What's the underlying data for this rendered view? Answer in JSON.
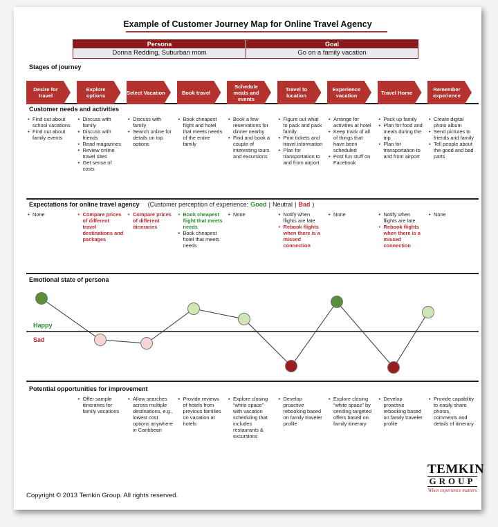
{
  "title": "Example of Customer Journey Map for Online Travel Agency",
  "persona": {
    "label": "Persona",
    "value": "Donna Redding, Suburban mom"
  },
  "goal": {
    "label": "Goal",
    "value": "Go on a family vacation"
  },
  "stages": {
    "title": "Stages of journey",
    "items": [
      "Desire for travel",
      "Explore options",
      "Select Vacation",
      "Book travel",
      "Schedule meals and events",
      "Travel to location",
      "Experience vacation",
      "Travel Home",
      "Remember experience"
    ]
  },
  "needs": {
    "title": "Customer needs and activities",
    "columns": [
      [
        "Find out about school vacations",
        "Find out about family events"
      ],
      [
        "Discuss with family",
        "Discuss with friends",
        "Read magazines",
        "Review online travel sites",
        "Get sense of costs"
      ],
      [
        "Discuss with family",
        "Search online for details on top options"
      ],
      [
        "Book cheapest flight and hotel that meets needs of the entire family"
      ],
      [
        "Book a few reservations for dinner nearby",
        "Find and book a couple of interesting tours and excursions"
      ],
      [
        "Figure out what to pack and pack family",
        "Print tickets and travel information",
        "Plan for transportation to and from airport"
      ],
      [
        "Arrange for activities at hotel",
        "Keep track of all of things that have been scheduled",
        "Post fun stuff on Facebook"
      ],
      [
        "Pack up family",
        "Plan for food and meals during the trip",
        "Plan for transportation to and from airport"
      ],
      [
        "Create digital photo album",
        "Send pictures to friends and family",
        "Tell people about the good and bad parts"
      ]
    ]
  },
  "expectations": {
    "title": "Expectations for online travel agency",
    "legend": [
      {
        "text": "(Customer perception of experience:",
        "color": "#222222"
      },
      {
        "text": "Good",
        "color": "#2e8b2e"
      },
      {
        "text": "|",
        "color": "#222222"
      },
      {
        "text": "Neutral",
        "color": "#222222"
      },
      {
        "text": "|",
        "color": "#222222"
      },
      {
        "text": "Bad",
        "color": "#c0282d"
      },
      {
        "text": ")",
        "color": "#222222"
      }
    ],
    "columns": [
      [
        {
          "text": "None",
          "color": "#222222"
        }
      ],
      [
        {
          "text": "Compare prices of different travel destinations and packages",
          "color": "#c0282d"
        }
      ],
      [
        {
          "text": "Compare prices of different itineraries",
          "color": "#c0282d"
        }
      ],
      [
        {
          "text": "Book cheapest flight that meets needs",
          "color": "#2e8b2e"
        },
        {
          "text": "Book cheapest hotel that meets needs",
          "color": "#222222"
        }
      ],
      [
        {
          "text": "None",
          "color": "#222222"
        }
      ],
      [
        {
          "text": "Notify when flights are late",
          "color": "#222222"
        },
        {
          "text": "Rebook flights when there is a missed connection",
          "color": "#c0282d"
        }
      ],
      [
        {
          "text": "None",
          "color": "#222222"
        }
      ],
      [
        {
          "text": "Notify when flights are late",
          "color": "#222222"
        },
        {
          "text": "Rebook flights when there is a missed connection",
          "color": "#c0282d"
        }
      ],
      [
        {
          "text": "None",
          "color": "#222222"
        }
      ]
    ]
  },
  "emotion": {
    "title": "Emotional state of persona",
    "happy": "Happy",
    "sad": "Sad"
  },
  "opportunities": {
    "title": "Potential opportunities for improvement",
    "columns": [
      "Offer sample itineraries for family vacations",
      "Allow searches across multiple destinations, e.g., lowest cost options anywhere in Caribbean",
      "Provide reviews of hotels from previous families on vacation at hotels",
      "Explore closing “white space” with vacation scheduling that includes restaurants & excursions",
      "Develop proactive rebooking based on family traveler profile",
      "Explore closing “white space” by sending targeted offers based on family itinerary",
      "Develop proactive rebooking based on family traveler profile",
      "Provide capability to easily share photos, comments and details of itinerary"
    ]
  },
  "footer": "Copyright © 2013 Temkin Group. All rights reserved.",
  "logo": {
    "line1": "TEMKIN",
    "line2": "GROUP",
    "tagline": "When experience matters"
  }
}
